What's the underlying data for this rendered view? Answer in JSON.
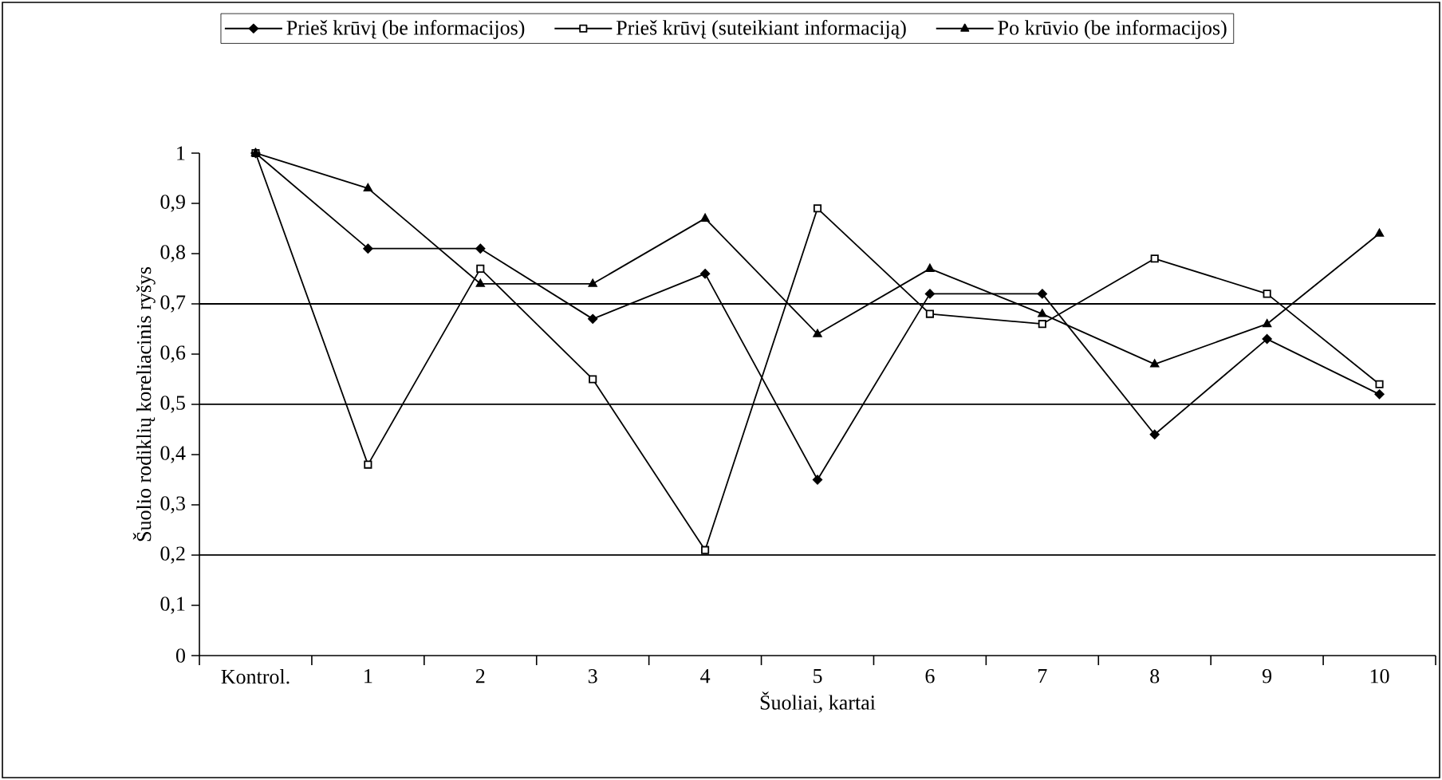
{
  "chart_data": {
    "type": "line",
    "xlabel": "Šuoliai, kartai",
    "ylabel": "Šuolio rodiklių koreliacinis ryšys",
    "categories": [
      "Kontrol.",
      "1",
      "2",
      "3",
      "4",
      "5",
      "6",
      "7",
      "8",
      "9",
      "10"
    ],
    "series": [
      {
        "name": "Prieš krūvį (be informacijos)",
        "color": "#000000",
        "marker": "diamond",
        "values": [
          1,
          0.81,
          0.81,
          0.67,
          0.76,
          0.35,
          0.72,
          0.72,
          0.44,
          0.63,
          0.52
        ]
      },
      {
        "name": "Prieš krūvį (suteikiant informaciją)",
        "color": "#000000",
        "marker": "square",
        "values": [
          1,
          0.38,
          0.77,
          0.55,
          0.21,
          0.89,
          0.68,
          0.66,
          0.79,
          0.72,
          0.54
        ]
      },
      {
        "name": "Po krūvio (be informacijos)",
        "color": "#000000",
        "marker": "triangle",
        "values": [
          1,
          0.93,
          0.74,
          0.74,
          0.87,
          0.64,
          0.77,
          0.68,
          0.58,
          0.66,
          0.84
        ]
      }
    ],
    "ylim": [
      0,
      1
    ],
    "yticks": [
      0,
      {
        "value": 0.1,
        "label": "0,1"
      },
      {
        "value": 0.2,
        "label": "0,2"
      },
      {
        "value": 0.3,
        "label": "0,3"
      },
      {
        "value": 0.4,
        "label": "0,4"
      },
      {
        "value": 0.5,
        "label": "0,5"
      },
      {
        "value": 0.6,
        "label": "0,6"
      },
      {
        "value": 0.7,
        "label": "0,7"
      },
      {
        "value": 0.8,
        "label": "0,8"
      },
      {
        "value": 0.9,
        "label": "0,9"
      },
      1
    ],
    "ref_lines": [
      {
        "axis": "y",
        "value": 0.2
      },
      {
        "axis": "y",
        "value": 0.5
      },
      {
        "axis": "y",
        "value": 0.7
      }
    ],
    "legend": "top"
  }
}
